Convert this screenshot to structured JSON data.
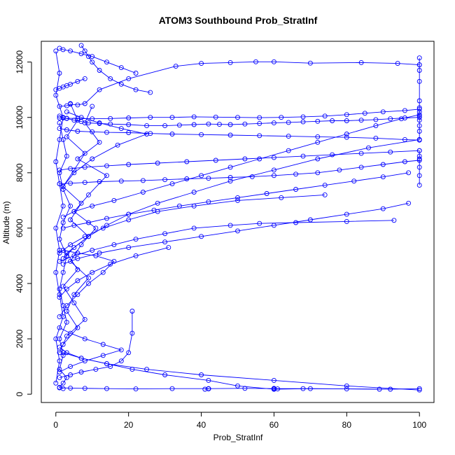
{
  "chart_data": {
    "type": "line",
    "title": "ATOM3 Southbound Prob_StratInf",
    "xlabel": "Prob_StratInf",
    "ylabel": "Altitude (m)",
    "xlim": [
      -4,
      104
    ],
    "ylim": [
      -300,
      12750
    ],
    "x_ticks": [
      0,
      20,
      40,
      60,
      80,
      100
    ],
    "y_ticks": [
      0,
      2000,
      4000,
      6000,
      8000,
      10000,
      12000
    ],
    "grid": false,
    "legend": "none",
    "marker": "open-circle",
    "color": "#0000ff",
    "series": [
      {
        "x": [
          100,
          94,
          84,
          70,
          60,
          55,
          48,
          40,
          33,
          20,
          12,
          8,
          6,
          4,
          3,
          1
        ],
        "y": [
          11900,
          11950,
          11980,
          11960,
          12010,
          12010,
          11980,
          11950,
          11850,
          11400,
          11000,
          10500,
          10450,
          10480,
          10420,
          10400
        ]
      },
      {
        "x": [
          1,
          2,
          3,
          5,
          7,
          9,
          12,
          15,
          20,
          25,
          30,
          34,
          38,
          42,
          45,
          48,
          52,
          56,
          60,
          64,
          68,
          72,
          76,
          80,
          84,
          88,
          92,
          96,
          100
        ],
        "y": [
          10050,
          9980,
          9960,
          9900,
          9850,
          9800,
          9780,
          9760,
          9740,
          9700,
          9700,
          9720,
          9740,
          9760,
          9750,
          9740,
          9760,
          9780,
          9800,
          9820,
          9840,
          9860,
          9880,
          9880,
          9900,
          9920,
          9950,
          9980,
          10000
        ]
      },
      {
        "x": [
          100,
          96,
          90,
          85,
          80,
          74,
          68,
          62,
          56,
          50,
          44,
          38,
          32,
          26,
          20,
          15,
          10,
          6,
          3,
          1
        ],
        "y": [
          10300,
          10250,
          10200,
          10150,
          10100,
          10050,
          10020,
          10000,
          9990,
          10000,
          10010,
          10020,
          10000,
          10000,
          9980,
          9960,
          9950,
          9960,
          9970,
          9980
        ]
      },
      {
        "x": [
          1,
          3,
          6,
          10,
          14,
          20,
          26,
          32,
          40,
          48,
          56,
          64,
          72,
          80,
          88,
          96,
          100
        ],
        "y": [
          9600,
          9550,
          9500,
          9480,
          9460,
          9450,
          9420,
          9400,
          9380,
          9360,
          9340,
          9320,
          9300,
          9280,
          9250,
          9200,
          9180
        ]
      },
      {
        "x": [
          100,
          92,
          84,
          76,
          68,
          60,
          52,
          44,
          36,
          28,
          20,
          14,
          8,
          4,
          1
        ],
        "y": [
          8800,
          8750,
          8700,
          8650,
          8600,
          8550,
          8500,
          8450,
          8400,
          8350,
          8300,
          8250,
          8200,
          8150,
          8100
        ]
      },
      {
        "x": [
          1,
          4,
          8,
          12,
          18,
          24,
          30,
          36,
          42,
          48,
          54,
          60,
          66,
          72,
          78,
          84,
          90,
          96,
          100
        ],
        "y": [
          7600,
          7620,
          7650,
          7680,
          7700,
          7720,
          7750,
          7780,
          7800,
          7830,
          7860,
          7900,
          7950,
          8000,
          8100,
          8200,
          8300,
          8400,
          8450
        ]
      },
      {
        "x": [
          100,
          95,
          88,
          80,
          72,
          64,
          56,
          48,
          40,
          32,
          24,
          16,
          10,
          5,
          2
        ],
        "y": [
          10100,
          9950,
          9700,
          9400,
          9100,
          8800,
          8500,
          8200,
          7900,
          7600,
          7300,
          7000,
          6800,
          6600,
          6400
        ]
      },
      {
        "x": [
          2,
          5,
          9,
          14,
          20,
          27,
          34,
          42,
          50,
          58,
          66,
          74,
          82,
          90,
          97
        ],
        "y": [
          6000,
          6100,
          6200,
          6350,
          6500,
          6650,
          6800,
          6950,
          7100,
          7250,
          7400,
          7550,
          7700,
          7850,
          8000
        ]
      },
      {
        "x": [
          97,
          90,
          80,
          70,
          60,
          50,
          40,
          30,
          20,
          12,
          6,
          2
        ],
        "y": [
          6900,
          6700,
          6500,
          6300,
          6100,
          5900,
          5700,
          5500,
          5300,
          5100,
          4900,
          4700
        ]
      },
      {
        "x": [
          93,
          80,
          66,
          56,
          48,
          38,
          30,
          22,
          16,
          10,
          5,
          1
        ],
        "y": [
          6280,
          6240,
          6200,
          6170,
          6100,
          6000,
          5800,
          5600,
          5400,
          5200,
          5000,
          4800
        ]
      },
      {
        "x": [
          74,
          62,
          50,
          38,
          28,
          20,
          13,
          8,
          4,
          1
        ],
        "y": [
          7200,
          7100,
          7000,
          6800,
          6600,
          6300,
          6000,
          5700,
          5400,
          5100
        ]
      },
      {
        "x": [
          100,
          86,
          72,
          60,
          48,
          38,
          28,
          20,
          14,
          9,
          5,
          2
        ],
        "y": [
          9200,
          8900,
          8500,
          8100,
          7700,
          7300,
          6900,
          6500,
          6100,
          5700,
          5300,
          4900
        ]
      },
      {
        "x": [
          100,
          80,
          60,
          40,
          25,
          14,
          7,
          3,
          1
        ],
        "y": [
          150,
          300,
          500,
          700,
          900,
          1100,
          1300,
          1500,
          1700
        ]
      },
      {
        "x": [
          100,
          92,
          80,
          68,
          60,
          52,
          42,
          32,
          22,
          14,
          8,
          4,
          1
        ],
        "y": [
          200,
          180,
          190,
          200,
          200,
          210,
          200,
          200,
          190,
          200,
          210,
          220,
          230
        ]
      },
      {
        "x": [
          89,
          70,
          60,
          50,
          42,
          30,
          21,
          14,
          7,
          2
        ],
        "y": [
          180,
          200,
          180,
          300,
          500,
          700,
          900,
          1100,
          1300,
          1500
        ]
      },
      {
        "x": [
          21,
          21,
          20,
          18,
          15,
          11,
          7,
          4,
          1
        ],
        "y": [
          3000,
          2200,
          1500,
          1200,
          1000,
          900,
          800,
          700,
          600
        ]
      },
      {
        "x": [
          1,
          3,
          6,
          10,
          15,
          22,
          31
        ],
        "y": [
          3500,
          3800,
          4100,
          4400,
          4700,
          5000,
          5300
        ]
      },
      {
        "x": [
          1,
          2,
          4,
          7,
          10,
          14,
          18,
          22
        ],
        "y": [
          12500,
          12450,
          12400,
          12300,
          12200,
          12000,
          11800,
          11600
        ]
      },
      {
        "x": [
          0,
          1,
          2,
          3,
          4,
          6,
          8
        ],
        "y": [
          11000,
          11050,
          11100,
          11150,
          11200,
          11300,
          11400
        ]
      },
      {
        "x": [
          7,
          8,
          9,
          10,
          12,
          15,
          18,
          22,
          26
        ],
        "y": [
          12600,
          12400,
          12200,
          12000,
          11700,
          11400,
          11200,
          11000,
          10900
        ]
      },
      {
        "x": [
          1,
          2,
          3,
          1,
          2,
          4,
          2,
          1,
          3,
          2,
          1,
          2,
          3,
          1,
          2,
          1,
          3,
          2,
          1,
          2
        ],
        "y": [
          9800,
          9200,
          8600,
          8000,
          7400,
          6800,
          6200,
          5600,
          5000,
          4400,
          3800,
          3200,
          2600,
          2000,
          1400,
          900,
          600,
          400,
          250,
          200
        ]
      },
      {
        "x": [
          0,
          1,
          0,
          2,
          1,
          0,
          1,
          2,
          0,
          1,
          0,
          1,
          2,
          0,
          1,
          0
        ],
        "y": [
          12400,
          11600,
          10800,
          10000,
          9200,
          8400,
          7600,
          6800,
          6000,
          5200,
          4400,
          3600,
          2800,
          2000,
          1200,
          400
        ]
      },
      {
        "x": [
          4,
          6,
          3,
          8,
          5,
          2,
          7,
          4,
          9,
          3,
          6,
          2,
          5,
          8,
          3,
          1
        ],
        "y": [
          10500,
          9900,
          9300,
          8700,
          8100,
          7500,
          6900,
          6300,
          5700,
          5100,
          4500,
          3900,
          3300,
          2700,
          2100,
          1500
        ]
      },
      {
        "x": [
          10,
          8,
          12,
          6,
          14,
          9,
          5,
          11,
          7,
          4,
          9,
          5,
          3,
          6,
          2
        ],
        "y": [
          10400,
          9800,
          9100,
          8500,
          7900,
          7200,
          6600,
          6000,
          5400,
          4800,
          4200,
          3600,
          3000,
          2400,
          1800
        ]
      },
      {
        "x": [
          3,
          7,
          12,
          18,
          25,
          17,
          10,
          5,
          2
        ],
        "y": [
          10200,
          10000,
          9800,
          9600,
          9400,
          9000,
          8500,
          8000,
          7500
        ]
      },
      {
        "x": [
          2,
          6,
          11,
          16,
          13,
          9,
          6,
          3,
          1
        ],
        "y": [
          5200,
          5100,
          5000,
          4800,
          4400,
          4000,
          3600,
          3200,
          2800
        ]
      },
      {
        "x": [
          1,
          4,
          8,
          13,
          18,
          13,
          8,
          4,
          1
        ],
        "y": [
          2400,
          2200,
          2000,
          1800,
          1600,
          1400,
          1200,
          1000,
          800
        ]
      },
      {
        "x": [
          100,
          100,
          100,
          100,
          100,
          100,
          100,
          100,
          100,
          100,
          100,
          100
        ],
        "y": [
          12150,
          11900,
          11700,
          11300,
          10600,
          10350,
          10200,
          10050,
          9900,
          9700,
          9500,
          9200
        ]
      },
      {
        "x": [
          100,
          100,
          100,
          100,
          100,
          100
        ],
        "y": [
          8800,
          8600,
          8500,
          8200,
          7900,
          7550
        ]
      },
      {
        "x": [
          60,
          60,
          61,
          60,
          60
        ],
        "y": [
          200,
          180,
          190,
          210,
          200
        ]
      },
      {
        "x": [
          41,
          42,
          42
        ],
        "y": [
          180,
          190,
          200
        ]
      }
    ]
  }
}
